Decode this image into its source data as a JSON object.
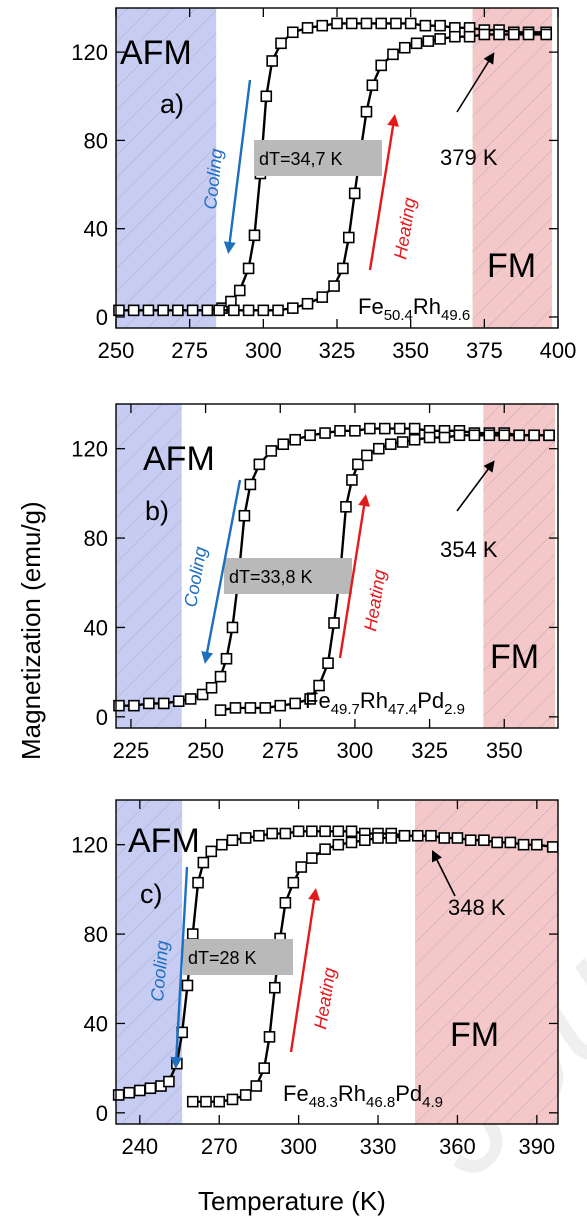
{
  "figure": {
    "ylabel": "Magnetization (emu/g)",
    "xlabel": "Temperature (K)",
    "watermark": "Journal Pre-proof"
  },
  "colors": {
    "afm_band": "#c7cdf2",
    "fm_band": "#f4c7c9",
    "cooling_arrow": "#1f6fc0",
    "heating_arrow": "#e31a1c",
    "dt_box": "#b9b9b9",
    "marker": "#000000"
  },
  "chart_data": [
    {
      "type": "scatter",
      "panel": "a)",
      "composition": [
        "Fe",
        "50.4",
        "Rh",
        "49.6"
      ],
      "afm_label": "AFM",
      "fm_label": "FM",
      "cooling_label": "Cooling",
      "heating_label": "Heating",
      "dt_label": "dT=34,7 K",
      "tc_label": "379 K",
      "xlim": [
        250,
        400
      ],
      "ylim": [
        -5,
        140
      ],
      "xticks": [
        250,
        275,
        300,
        325,
        350,
        375,
        400
      ],
      "yticks": [
        0,
        40,
        80,
        120
      ],
      "afm_range": [
        250,
        284
      ],
      "fm_range": [
        371,
        398
      ],
      "series": [
        {
          "branch": "cooling",
          "x": [
            251,
            256,
            261,
            266,
            271,
            276,
            281,
            286,
            289,
            292,
            295,
            297,
            299,
            301,
            303,
            306,
            310,
            315,
            320,
            325,
            330,
            335,
            340,
            345,
            350,
            355,
            360,
            365,
            370,
            375,
            380,
            385,
            390,
            396
          ],
          "y": [
            3,
            3,
            3,
            3,
            3,
            3,
            3,
            4,
            7,
            12,
            22,
            37,
            65,
            100,
            116,
            124,
            129,
            131,
            132,
            133,
            133,
            133,
            133,
            133,
            133,
            132,
            132,
            131,
            131,
            130,
            130,
            129,
            129,
            129
          ]
        },
        {
          "branch": "heating",
          "x": [
            285,
            290,
            295,
            300,
            305,
            310,
            315,
            320,
            324,
            327,
            329,
            331,
            333,
            335,
            337,
            340,
            344,
            348,
            352,
            356,
            360,
            365,
            370,
            375,
            380,
            385,
            390,
            396
          ],
          "y": [
            3,
            3,
            3,
            3,
            3,
            4,
            6,
            9,
            14,
            22,
            36,
            56,
            75,
            93,
            105,
            114,
            119,
            122,
            124,
            125,
            126,
            127,
            127,
            128,
            128,
            128,
            128,
            128
          ]
        }
      ]
    },
    {
      "type": "scatter",
      "panel": "b)",
      "composition": [
        "Fe",
        "49.7",
        "Rh",
        "47.4",
        "Pd",
        "2.9"
      ],
      "afm_label": "AFM",
      "fm_label": "FM",
      "cooling_label": "Cooling",
      "heating_label": "Heating",
      "dt_label": "dT=33,8 K",
      "tc_label": "354 K",
      "xlim": [
        220,
        368
      ],
      "ylim": [
        -5,
        140
      ],
      "xticks": [
        225,
        250,
        275,
        300,
        325,
        350
      ],
      "yticks": [
        0,
        40,
        80,
        120
      ],
      "afm_range": [
        220,
        242
      ],
      "fm_range": [
        343,
        367
      ],
      "series": [
        {
          "branch": "cooling",
          "x": [
            221,
            226,
            231,
            236,
            241,
            245,
            249,
            252,
            255,
            257,
            259,
            261,
            263,
            265,
            268,
            272,
            276,
            280,
            285,
            290,
            295,
            300,
            305,
            310,
            315,
            320,
            325,
            330,
            335,
            340,
            345,
            350,
            355,
            360,
            365
          ],
          "y": [
            5,
            5,
            6,
            6,
            7,
            8,
            10,
            13,
            18,
            26,
            40,
            62,
            90,
            104,
            113,
            119,
            122,
            124,
            126,
            127,
            128,
            128,
            129,
            129,
            129,
            129,
            128,
            128,
            128,
            127,
            127,
            127,
            126,
            126,
            126
          ]
        },
        {
          "branch": "heating",
          "x": [
            255,
            260,
            265,
            270,
            275,
            280,
            285,
            288,
            291,
            293,
            295,
            297,
            299,
            301,
            304,
            308,
            312,
            316,
            320,
            325,
            330,
            335,
            340,
            345,
            350,
            355,
            360,
            365
          ],
          "y": [
            3,
            4,
            4,
            4,
            5,
            6,
            8,
            14,
            24,
            42,
            63,
            94,
            106,
            113,
            117,
            120,
            122,
            123,
            124,
            125,
            125,
            126,
            126,
            126,
            126,
            126,
            126,
            126
          ]
        }
      ]
    },
    {
      "type": "scatter",
      "panel": "c)",
      "composition": [
        "Fe",
        "48.3",
        "Rh",
        "46.8",
        "Pd",
        "4.9"
      ],
      "afm_label": "AFM",
      "fm_label": "FM",
      "cooling_label": "Cooling",
      "heating_label": "Heating",
      "dt_label": "dT=28 K",
      "tc_label": "348 K",
      "xlim": [
        231,
        398
      ],
      "ylim": [
        -5,
        140
      ],
      "xticks": [
        240,
        270,
        300,
        330,
        360,
        390
      ],
      "yticks": [
        0,
        40,
        80,
        120
      ],
      "afm_range": [
        231,
        256
      ],
      "fm_range": [
        344,
        398
      ],
      "series": [
        {
          "branch": "cooling",
          "x": [
            232,
            236,
            240,
            244,
            248,
            251,
            254,
            256,
            258,
            260,
            262,
            264,
            267,
            271,
            275,
            280,
            285,
            290,
            295,
            300,
            305,
            310,
            315,
            320,
            325,
            330,
            335,
            340,
            345,
            350,
            355,
            360,
            365,
            370,
            375,
            380,
            385,
            390,
            396
          ],
          "y": [
            8,
            9,
            10,
            11,
            12,
            14,
            22,
            36,
            57,
            80,
            103,
            112,
            117,
            120,
            122,
            123,
            124,
            125,
            125,
            126,
            126,
            126,
            126,
            126,
            125,
            125,
            125,
            124,
            124,
            124,
            123,
            123,
            122,
            122,
            121,
            121,
            120,
            120,
            119
          ]
        },
        {
          "branch": "heating",
          "x": [
            260,
            265,
            270,
            275,
            280,
            284,
            287,
            289,
            291,
            293,
            295,
            298,
            301,
            305,
            310,
            315,
            320,
            325,
            330,
            335,
            340
          ],
          "y": [
            5,
            5,
            5,
            6,
            8,
            12,
            20,
            34,
            56,
            78,
            94,
            103,
            110,
            114,
            118,
            120,
            121,
            122,
            123,
            123,
            124
          ]
        }
      ]
    }
  ]
}
